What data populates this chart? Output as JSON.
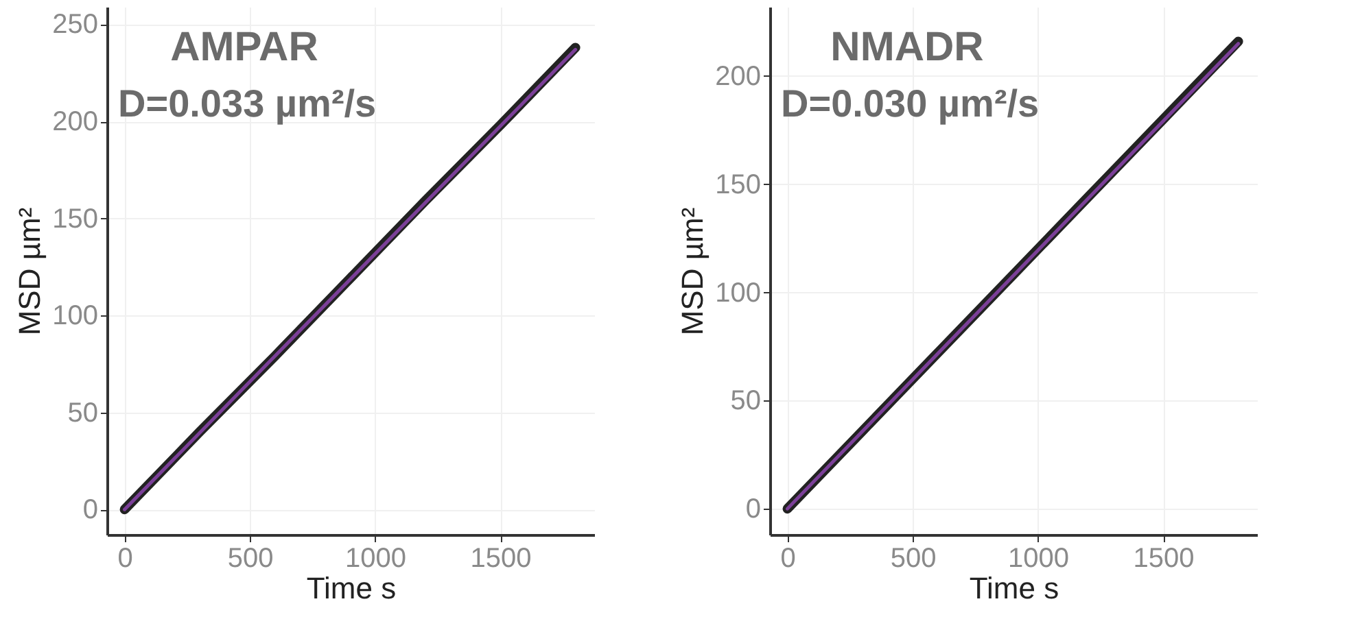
{
  "chart_data": [
    {
      "type": "line",
      "title": "AMPAR",
      "annotations": [
        "D=0.033 µm²/s"
      ],
      "xlabel": "Time    s",
      "ylabel": "MSD  µm²",
      "xlim": [
        -70,
        1875
      ],
      "ylim": [
        -13,
        259
      ],
      "xticks": [
        0,
        500,
        1000,
        1500
      ],
      "yticks": [
        0,
        50,
        100,
        150,
        200,
        250
      ],
      "grid": true,
      "series": [
        {
          "color": "#222222",
          "x": [
            0,
            300,
            600,
            900,
            1200,
            1500,
            1800
          ],
          "values": [
            0,
            40,
            79,
            119,
            159,
            198,
            238
          ]
        },
        {
          "color": "#7b3f98",
          "x": [
            0,
            1800
          ],
          "values": [
            0,
            237
          ]
        }
      ]
    },
    {
      "type": "line",
      "title": "NMADR",
      "annotations": [
        "D=0.030 µm²/s"
      ],
      "xlabel": "Time    s",
      "ylabel": "MSD  µm²",
      "xlim": [
        -70,
        1875
      ],
      "ylim": [
        -12,
        232
      ],
      "xticks": [
        0,
        500,
        1000,
        1500
      ],
      "yticks": [
        0,
        50,
        100,
        150,
        200
      ],
      "grid": true,
      "series": [
        {
          "color": "#222222",
          "x": [
            0,
            300,
            600,
            900,
            1200,
            1500,
            1800
          ],
          "values": [
            0,
            36,
            72,
            108,
            144,
            180,
            216
          ]
        },
        {
          "color": "#7b3f98",
          "x": [
            0,
            1800
          ],
          "values": [
            0,
            215
          ]
        }
      ]
    }
  ]
}
